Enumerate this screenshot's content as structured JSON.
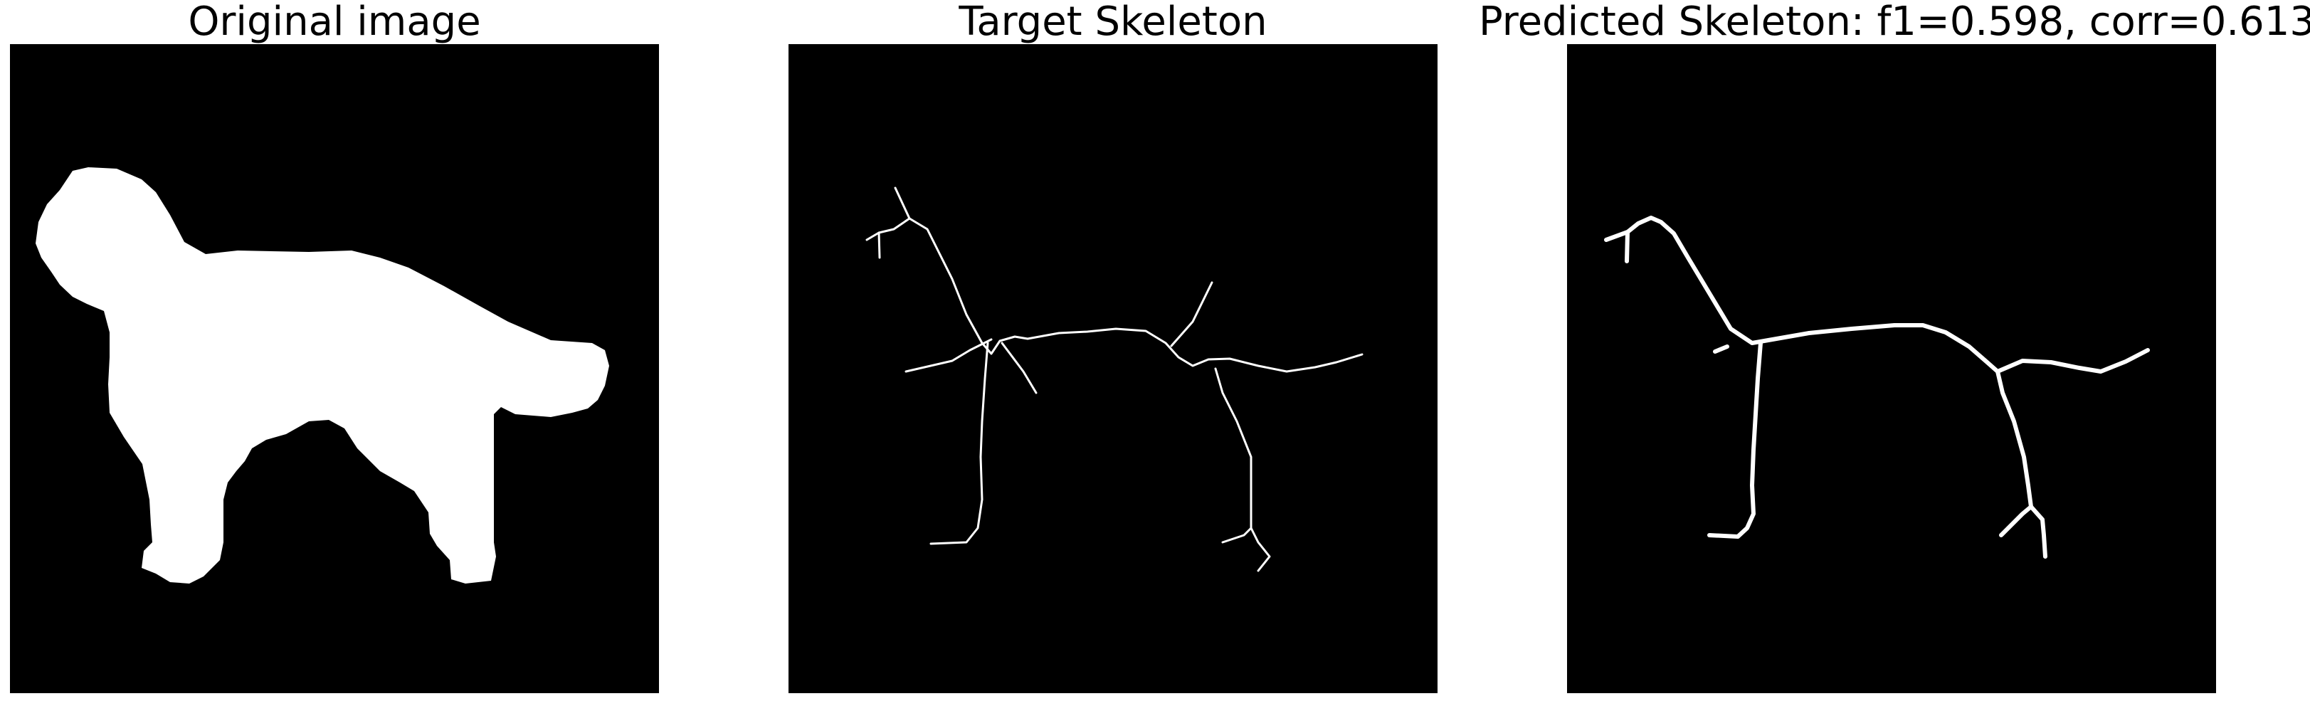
{
  "panels": [
    {
      "title": "Original image"
    },
    {
      "title": "Target Skeleton"
    },
    {
      "title": "Predicted Skeleton: f1=0.598, corr=0.613"
    }
  ],
  "colors": {
    "background": "#000000",
    "foreground": "#ffffff",
    "page": "#ffffff",
    "text": "#000000"
  }
}
